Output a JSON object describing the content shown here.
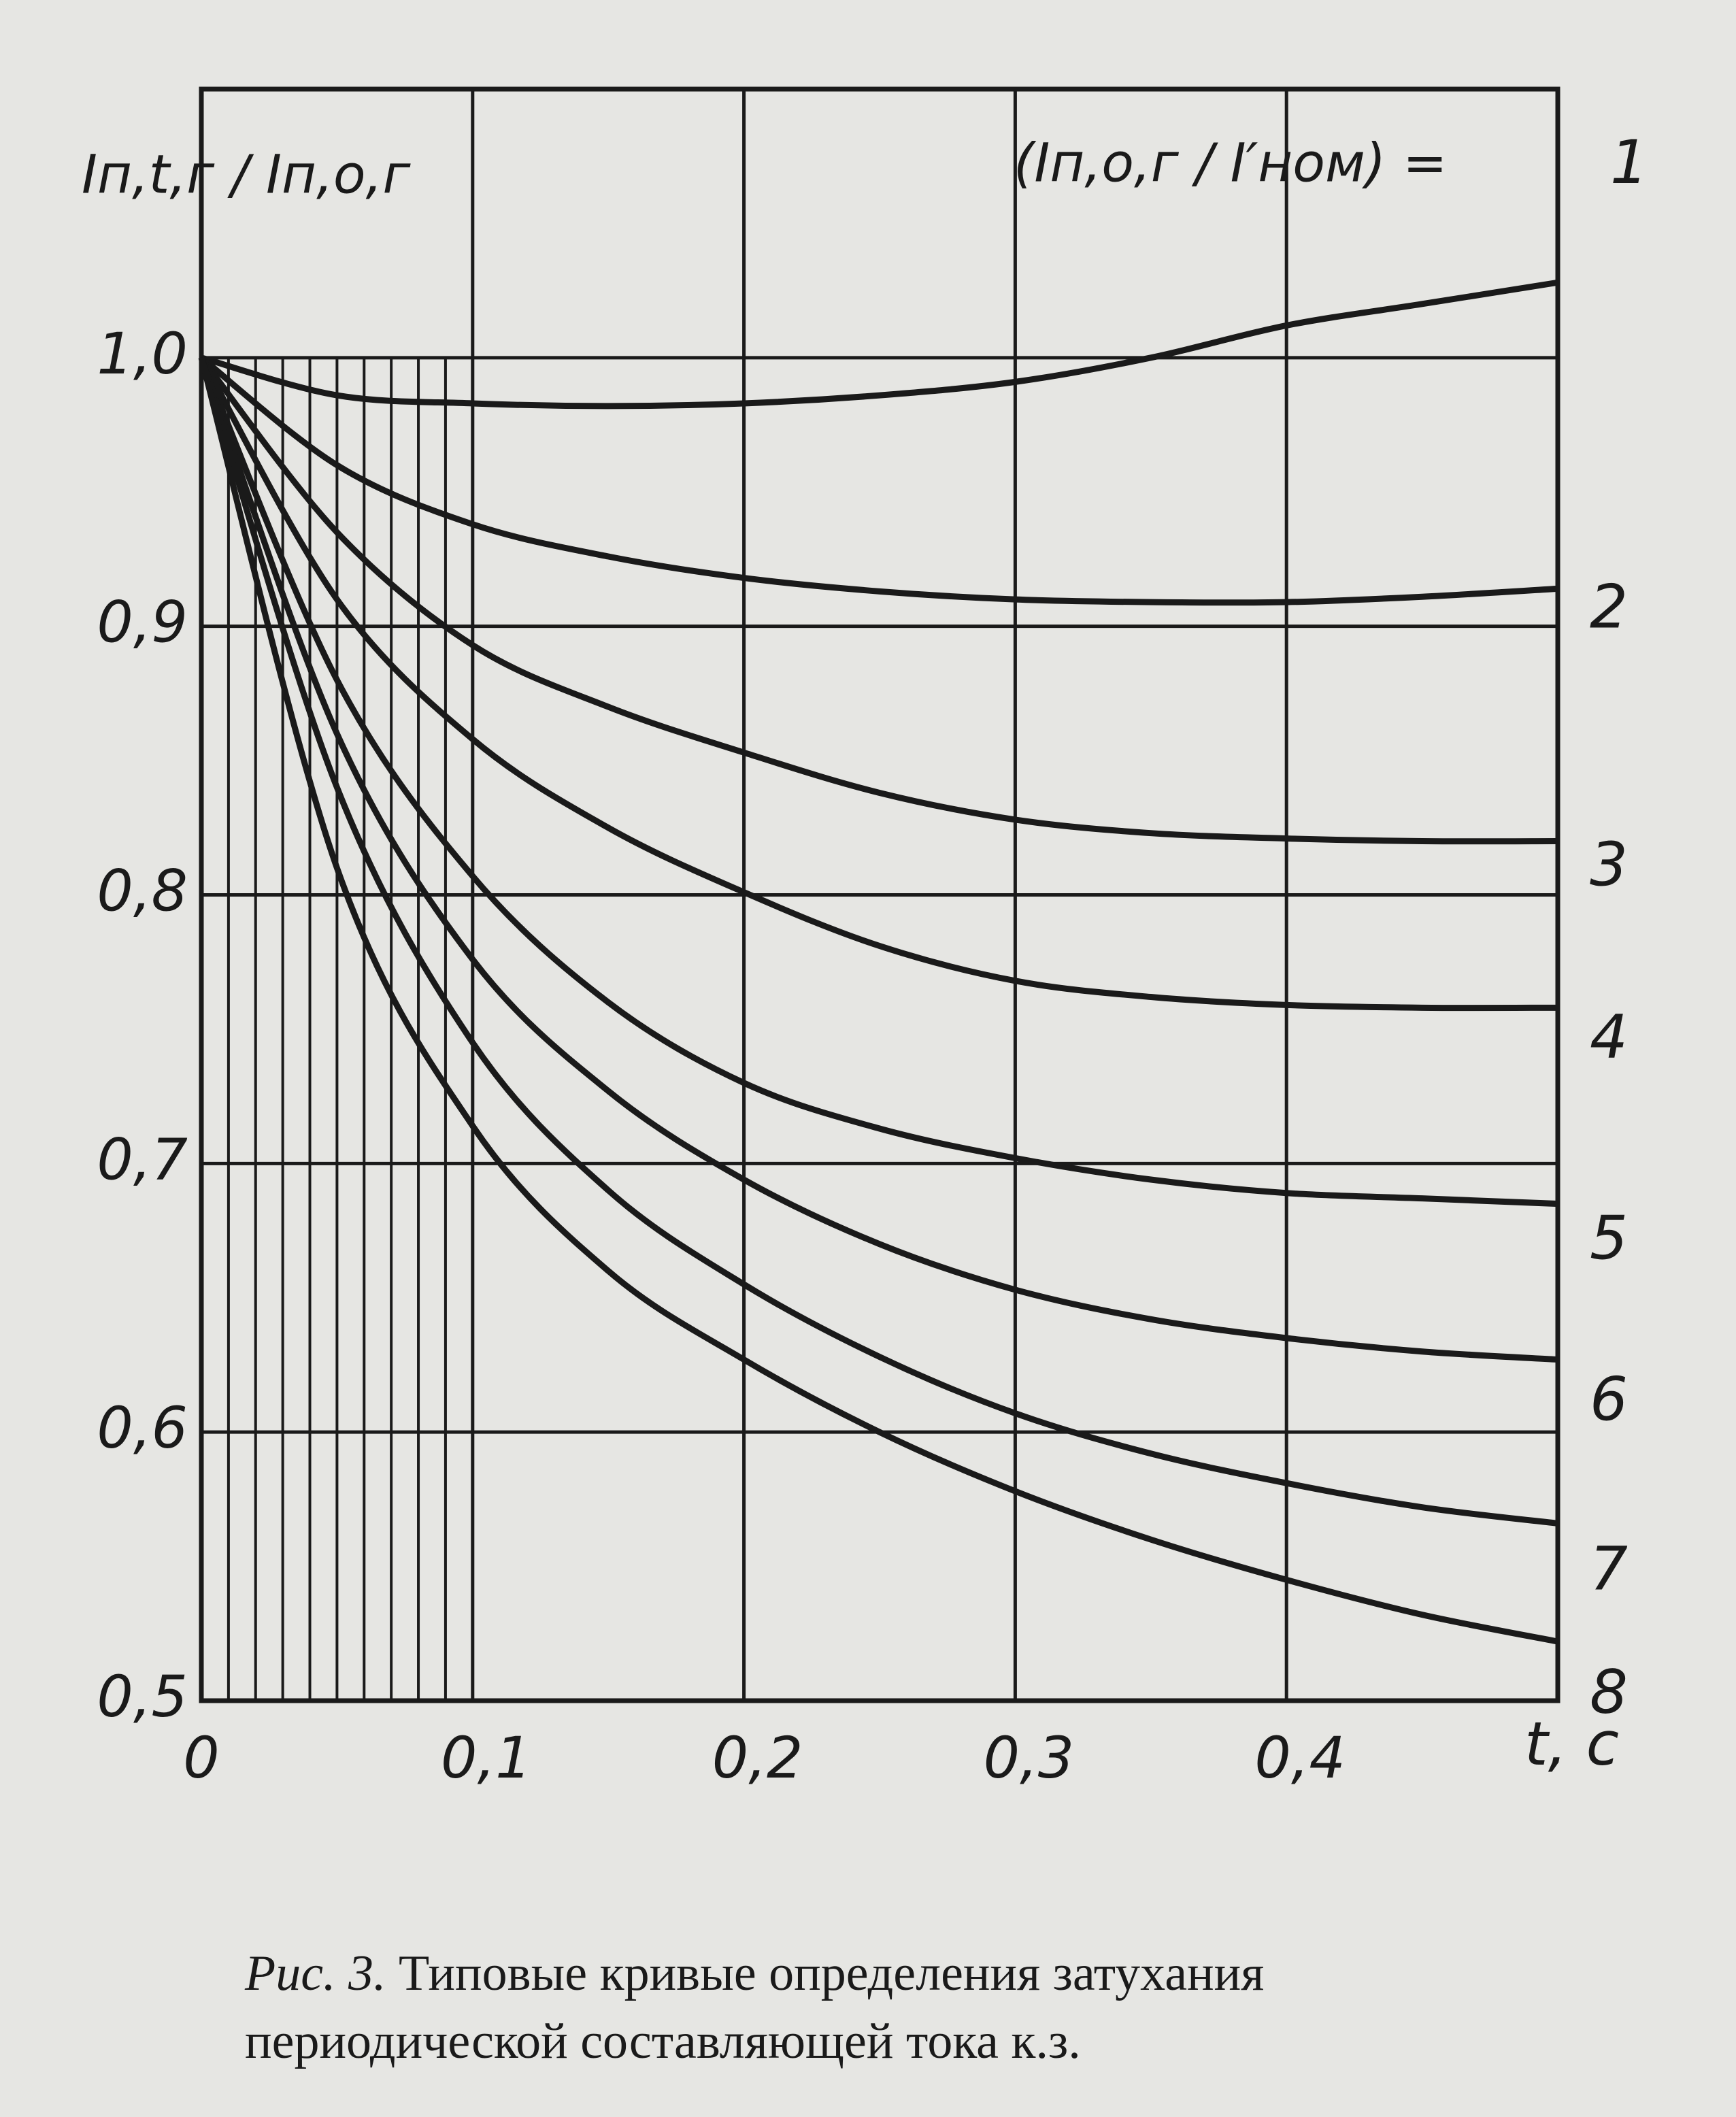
{
  "chart_data": {
    "type": "line",
    "ylabel": "Iп,t,г / Iп,о,г",
    "legend_title": "(Iп,о,г / I′ном) =",
    "xlabel": "t, c",
    "x": [
      0,
      0.05,
      0.1,
      0.15,
      0.2,
      0.25,
      0.3,
      0.35,
      0.4,
      0.45,
      0.5
    ],
    "xlim": [
      0,
      0.5
    ],
    "ylim": [
      0.5,
      1.1
    ],
    "xticks": [
      0,
      {
        "value": 0.1,
        "label": "0,1"
      },
      {
        "value": 0.2,
        "label": "0,2"
      },
      {
        "value": 0.3,
        "label": "0,3"
      },
      {
        "value": 0.4,
        "label": "0,4"
      }
    ],
    "yticks": [
      {
        "value": 0.5,
        "label": "0,5"
      },
      {
        "value": 0.6,
        "label": "0,6"
      },
      {
        "value": 0.7,
        "label": "0,7"
      },
      {
        "value": 0.8,
        "label": "0,8"
      },
      {
        "value": 0.9,
        "label": "0,9"
      },
      {
        "value": 1.0,
        "label": "1,0"
      }
    ],
    "grid": true,
    "minor_xgrid": [
      0.01,
      0.02,
      0.03,
      0.04,
      0.05,
      0.06,
      0.07,
      0.08,
      0.09
    ],
    "minor_xgrid_ylim": [
      0.5,
      1.0
    ],
    "color": "#1a1a1a",
    "series": [
      {
        "name": "1",
        "color": "#1a1a1a",
        "values": [
          1.0,
          0.986,
          0.983,
          0.982,
          0.983,
          0.986,
          0.991,
          1.0,
          1.012,
          1.02,
          1.028
        ]
      },
      {
        "name": "2",
        "color": "#1a1a1a",
        "values": [
          1.0,
          0.96,
          0.938,
          0.926,
          0.918,
          0.913,
          0.91,
          0.909,
          0.909,
          0.911,
          0.914
        ]
      },
      {
        "name": "3",
        "color": "#1a1a1a",
        "values": [
          1.0,
          0.935,
          0.893,
          0.87,
          0.853,
          0.838,
          0.828,
          0.823,
          0.821,
          0.82,
          0.82
        ]
      },
      {
        "name": "4",
        "color": "#1a1a1a",
        "values": [
          1.0,
          0.91,
          0.858,
          0.825,
          0.801,
          0.781,
          0.768,
          0.762,
          0.759,
          0.758,
          0.758
        ]
      },
      {
        "name": "5",
        "color": "#1a1a1a",
        "values": [
          1.0,
          0.88,
          0.807,
          0.76,
          0.73,
          0.713,
          0.702,
          0.694,
          0.689,
          0.687,
          0.685
        ]
      },
      {
        "name": "6",
        "color": "#1a1a1a",
        "values": [
          1.0,
          0.86,
          0.776,
          0.727,
          0.694,
          0.67,
          0.653,
          0.642,
          0.635,
          0.63,
          0.627
        ]
      },
      {
        "name": "7",
        "color": "#1a1a1a",
        "values": [
          1.0,
          0.84,
          0.745,
          0.69,
          0.655,
          0.628,
          0.607,
          0.592,
          0.581,
          0.572,
          0.566
        ]
      },
      {
        "name": "8",
        "color": "#1a1a1a",
        "values": [
          1.0,
          0.81,
          0.714,
          0.66,
          0.627,
          0.6,
          0.578,
          0.56,
          0.545,
          0.532,
          0.522
        ]
      }
    ]
  },
  "caption": {
    "label": "Рис. 3.",
    "lines": [
      "Типовые кривые определения затухания",
      "периодической составляющей тока к.з."
    ]
  }
}
